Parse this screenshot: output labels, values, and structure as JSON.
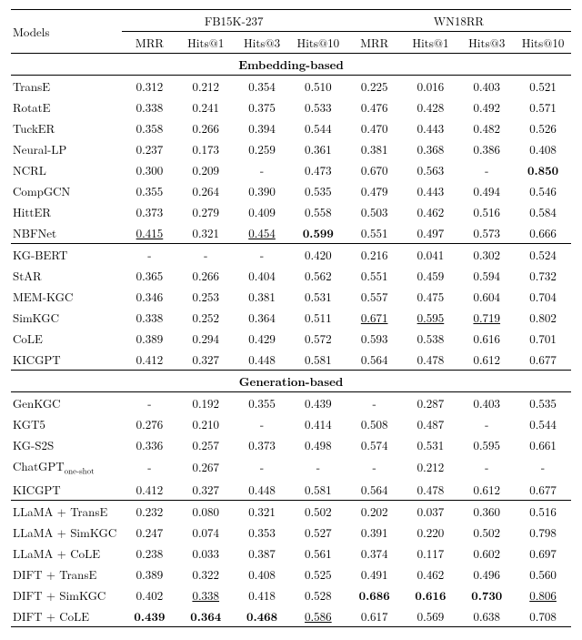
{
  "header": {
    "models_label": "Models",
    "groups": [
      "FB15K-237",
      "WN18RR"
    ],
    "metrics": [
      "MRR",
      "Hits@1",
      "Hits@3",
      "Hits@10"
    ]
  },
  "sections": [
    {
      "title": "Embedding-based",
      "blocks": [
        {
          "rows": [
            {
              "model": "TransE",
              "vals": [
                "0.312",
                "0.212",
                "0.354",
                "0.510",
                "0.225",
                "0.016",
                "0.403",
                "0.521"
              ],
              "bold": [
                0,
                0,
                0,
                0,
                0,
                0,
                0,
                0
              ],
              "ul": [
                0,
                0,
                0,
                0,
                0,
                0,
                0,
                0
              ]
            },
            {
              "model": "RotatE",
              "vals": [
                "0.338",
                "0.241",
                "0.375",
                "0.533",
                "0.476",
                "0.428",
                "0.492",
                "0.571"
              ],
              "bold": [
                0,
                0,
                0,
                0,
                0,
                0,
                0,
                0
              ],
              "ul": [
                0,
                0,
                0,
                0,
                0,
                0,
                0,
                0
              ]
            },
            {
              "model": "TuckER",
              "vals": [
                "0.358",
                "0.266",
                "0.394",
                "0.544",
                "0.470",
                "0.443",
                "0.482",
                "0.526"
              ],
              "bold": [
                0,
                0,
                0,
                0,
                0,
                0,
                0,
                0
              ],
              "ul": [
                0,
                0,
                0,
                0,
                0,
                0,
                0,
                0
              ]
            },
            {
              "model": "Neural-LP",
              "vals": [
                "0.237",
                "0.173",
                "0.259",
                "0.361",
                "0.381",
                "0.368",
                "0.386",
                "0.408"
              ],
              "bold": [
                0,
                0,
                0,
                0,
                0,
                0,
                0,
                0
              ],
              "ul": [
                0,
                0,
                0,
                0,
                0,
                0,
                0,
                0
              ]
            },
            {
              "model": "NCRL",
              "vals": [
                "0.300",
                "0.209",
                "-",
                "0.473",
                "0.670",
                "0.563",
                "-",
                "0.850"
              ],
              "bold": [
                0,
                0,
                0,
                0,
                0,
                0,
                0,
                1
              ],
              "ul": [
                0,
                0,
                0,
                0,
                0,
                0,
                0,
                0
              ]
            },
            {
              "model": "CompGCN",
              "vals": [
                "0.355",
                "0.264",
                "0.390",
                "0.535",
                "0.479",
                "0.443",
                "0.494",
                "0.546"
              ],
              "bold": [
                0,
                0,
                0,
                0,
                0,
                0,
                0,
                0
              ],
              "ul": [
                0,
                0,
                0,
                0,
                0,
                0,
                0,
                0
              ]
            },
            {
              "model": "HittER",
              "vals": [
                "0.373",
                "0.279",
                "0.409",
                "0.558",
                "0.503",
                "0.462",
                "0.516",
                "0.584"
              ],
              "bold": [
                0,
                0,
                0,
                0,
                0,
                0,
                0,
                0
              ],
              "ul": [
                0,
                0,
                0,
                0,
                0,
                0,
                0,
                0
              ]
            },
            {
              "model": "NBFNet",
              "vals": [
                "0.415",
                "0.321",
                "0.454",
                "0.599",
                "0.551",
                "0.497",
                "0.573",
                "0.666"
              ],
              "bold": [
                0,
                0,
                0,
                1,
                0,
                0,
                0,
                0
              ],
              "ul": [
                1,
                0,
                1,
                0,
                0,
                0,
                0,
                0
              ]
            }
          ]
        },
        {
          "rows": [
            {
              "model": "KG-BERT",
              "vals": [
                "-",
                "-",
                "-",
                "0.420",
                "0.216",
                "0.041",
                "0.302",
                "0.524"
              ],
              "bold": [
                0,
                0,
                0,
                0,
                0,
                0,
                0,
                0
              ],
              "ul": [
                0,
                0,
                0,
                0,
                0,
                0,
                0,
                0
              ]
            },
            {
              "model": "StAR",
              "vals": [
                "0.365",
                "0.266",
                "0.404",
                "0.562",
                "0.551",
                "0.459",
                "0.594",
                "0.732"
              ],
              "bold": [
                0,
                0,
                0,
                0,
                0,
                0,
                0,
                0
              ],
              "ul": [
                0,
                0,
                0,
                0,
                0,
                0,
                0,
                0
              ]
            },
            {
              "model": "MEM-KGC",
              "vals": [
                "0.346",
                "0.253",
                "0.381",
                "0.531",
                "0.557",
                "0.475",
                "0.604",
                "0.704"
              ],
              "bold": [
                0,
                0,
                0,
                0,
                0,
                0,
                0,
                0
              ],
              "ul": [
                0,
                0,
                0,
                0,
                0,
                0,
                0,
                0
              ]
            },
            {
              "model": "SimKGC",
              "vals": [
                "0.338",
                "0.252",
                "0.364",
                "0.511",
                "0.671",
                "0.595",
                "0.719",
                "0.802"
              ],
              "bold": [
                0,
                0,
                0,
                0,
                0,
                0,
                0,
                0
              ],
              "ul": [
                0,
                0,
                0,
                0,
                1,
                1,
                1,
                0
              ]
            },
            {
              "model": "CoLE",
              "vals": [
                "0.389",
                "0.294",
                "0.429",
                "0.572",
                "0.593",
                "0.538",
                "0.616",
                "0.701"
              ],
              "bold": [
                0,
                0,
                0,
                0,
                0,
                0,
                0,
                0
              ],
              "ul": [
                0,
                0,
                0,
                0,
                0,
                0,
                0,
                0
              ]
            },
            {
              "model": "KICGPT",
              "vals": [
                "0.412",
                "0.327",
                "0.448",
                "0.581",
                "0.564",
                "0.478",
                "0.612",
                "0.677"
              ],
              "bold": [
                0,
                0,
                0,
                0,
                0,
                0,
                0,
                0
              ],
              "ul": [
                0,
                0,
                0,
                0,
                0,
                0,
                0,
                0
              ]
            }
          ]
        }
      ],
      "kicgpt_out_of_block": true
    },
    {
      "title": "Generation-based",
      "blocks": [
        {
          "rows": [
            {
              "model": "GenKGC",
              "vals": [
                "-",
                "0.192",
                "0.355",
                "0.439",
                "-",
                "0.287",
                "0.403",
                "0.535"
              ],
              "bold": [
                0,
                0,
                0,
                0,
                0,
                0,
                0,
                0
              ],
              "ul": [
                0,
                0,
                0,
                0,
                0,
                0,
                0,
                0
              ]
            },
            {
              "model": "KGT5",
              "vals": [
                "0.276",
                "0.210",
                "-",
                "0.414",
                "0.508",
                "0.487",
                "-",
                "0.544"
              ],
              "bold": [
                0,
                0,
                0,
                0,
                0,
                0,
                0,
                0
              ],
              "ul": [
                0,
                0,
                0,
                0,
                0,
                0,
                0,
                0
              ]
            },
            {
              "model": "KG-S2S",
              "vals": [
                "0.336",
                "0.257",
                "0.373",
                "0.498",
                "0.574",
                "0.531",
                "0.595",
                "0.661"
              ],
              "bold": [
                0,
                0,
                0,
                0,
                0,
                0,
                0,
                0
              ],
              "ul": [
                0,
                0,
                0,
                0,
                0,
                0,
                0,
                0
              ]
            },
            {
              "model_html": "ChatGPT<span class=\"sub\">one-shot</span>",
              "vals": [
                "-",
                "0.267",
                "-",
                "-",
                "-",
                "0.212",
                "-",
                "-"
              ],
              "bold": [
                0,
                0,
                0,
                0,
                0,
                0,
                0,
                0
              ],
              "ul": [
                0,
                0,
                0,
                0,
                0,
                0,
                0,
                0
              ]
            },
            {
              "model": "KICGPT",
              "vals": [
                "0.412",
                "0.327",
                "0.448",
                "0.581",
                "0.564",
                "0.478",
                "0.612",
                "0.677"
              ],
              "bold": [
                0,
                0,
                0,
                0,
                0,
                0,
                0,
                0
              ],
              "ul": [
                0,
                0,
                0,
                0,
                0,
                0,
                0,
                0
              ]
            }
          ]
        },
        {
          "rows": [
            {
              "model": "LLaMA + TransE",
              "vals": [
                "0.232",
                "0.080",
                "0.321",
                "0.502",
                "0.202",
                "0.037",
                "0.360",
                "0.516"
              ],
              "bold": [
                0,
                0,
                0,
                0,
                0,
                0,
                0,
                0
              ],
              "ul": [
                0,
                0,
                0,
                0,
                0,
                0,
                0,
                0
              ]
            },
            {
              "model": "LLaMA + SimKGC",
              "vals": [
                "0.247",
                "0.074",
                "0.353",
                "0.527",
                "0.391",
                "0.220",
                "0.502",
                "0.798"
              ],
              "bold": [
                0,
                0,
                0,
                0,
                0,
                0,
                0,
                0
              ],
              "ul": [
                0,
                0,
                0,
                0,
                0,
                0,
                0,
                0
              ]
            },
            {
              "model": "LLaMA + CoLE",
              "vals": [
                "0.238",
                "0.033",
                "0.387",
                "0.561",
                "0.374",
                "0.117",
                "0.602",
                "0.697"
              ],
              "bold": [
                0,
                0,
                0,
                0,
                0,
                0,
                0,
                0
              ],
              "ul": [
                0,
                0,
                0,
                0,
                0,
                0,
                0,
                0
              ]
            },
            {
              "model": "DIFT + TransE",
              "vals": [
                "0.389",
                "0.322",
                "0.408",
                "0.525",
                "0.491",
                "0.462",
                "0.496",
                "0.560"
              ],
              "bold": [
                0,
                0,
                0,
                0,
                0,
                0,
                0,
                0
              ],
              "ul": [
                0,
                0,
                0,
                0,
                0,
                0,
                0,
                0
              ]
            },
            {
              "model": "DIFT + SimKGC",
              "vals": [
                "0.402",
                "0.338",
                "0.418",
                "0.528",
                "0.686",
                "0.616",
                "0.730",
                "0.806"
              ],
              "bold": [
                0,
                0,
                0,
                0,
                1,
                1,
                1,
                0
              ],
              "ul": [
                0,
                1,
                0,
                0,
                0,
                0,
                0,
                1
              ]
            },
            {
              "model": "DIFT + CoLE",
              "vals": [
                "0.439",
                "0.364",
                "0.468",
                "0.586",
                "0.617",
                "0.569",
                "0.638",
                "0.708"
              ],
              "bold": [
                1,
                1,
                1,
                0,
                0,
                0,
                0,
                0
              ],
              "ul": [
                0,
                0,
                0,
                1,
                0,
                0,
                0,
                0
              ]
            }
          ]
        }
      ]
    }
  ]
}
